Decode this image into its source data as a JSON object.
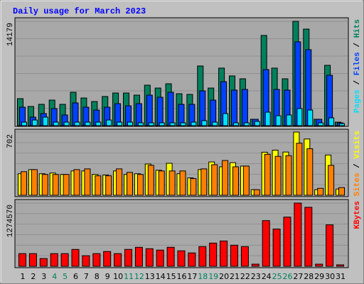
{
  "chart_data": [
    {
      "type": "bar",
      "title": "Daily usage for March 2023",
      "ylim": [
        0,
        14179
      ],
      "yticks": [
        14179
      ],
      "legend_separator": " / ",
      "series": [
        {
          "name": "Pages",
          "color": "#00e0ff",
          "values": [
            480,
            770,
            1160,
            480,
            480,
            480,
            480,
            480,
            770,
            480,
            480,
            390,
            390,
            390,
            390,
            390,
            480,
            680,
            480,
            1640,
            390,
            390,
            580,
            1830,
            1350,
            1450,
            2320,
            2120,
            390,
            1060,
            290
          ]
        },
        {
          "name": "Files",
          "color": "#0040ff",
          "values": [
            2510,
            1160,
            1640,
            2320,
            1450,
            3090,
            2510,
            2120,
            2510,
            2990,
            2700,
            2990,
            4150,
            3860,
            4540,
            2900,
            2900,
            4730,
            3470,
            5980,
            4830,
            4920,
            870,
            7620,
            4920,
            4830,
            11390,
            10330,
            870,
            6850,
            390
          ]
        },
        {
          "name": "Hits",
          "color": "#00805c",
          "values": [
            3670,
            2610,
            2900,
            3470,
            2900,
            4540,
            3760,
            3280,
            3960,
            4440,
            4440,
            4150,
            5500,
            5110,
            5690,
            4340,
            4250,
            8110,
            5110,
            7820,
            6760,
            6370,
            870,
            12260,
            7820,
            6370,
            14179,
            13120,
            870,
            8200,
            480
          ]
        }
      ]
    },
    {
      "type": "bar",
      "ylim": [
        0,
        702
      ],
      "yticks": [
        702
      ],
      "legend_separator": " / ",
      "series": [
        {
          "name": "Sites",
          "color": "#ff8000",
          "values": [
            262,
            285,
            231,
            231,
            231,
            285,
            293,
            216,
            216,
            293,
            254,
            231,
            332,
            270,
            270,
            270,
            185,
            293,
            339,
            386,
            316,
            324,
            62,
            455,
            432,
            440,
            578,
            517,
            77,
            332,
            85
          ]
        },
        {
          "name": "Visits",
          "color": "#ffff00",
          "values": [
            239,
            285,
            239,
            247,
            231,
            270,
            270,
            231,
            224,
            270,
            231,
            239,
            347,
            278,
            355,
            239,
            193,
            285,
            370,
            316,
            362,
            324,
            62,
            478,
            501,
            480,
            702,
            625,
            62,
            447,
            69
          ]
        }
      ]
    },
    {
      "type": "bar",
      "ylim": [
        0,
        1274570
      ],
      "yticks": [
        1274570
      ],
      "categories": [
        "1",
        "2",
        "3",
        "4",
        "5",
        "6",
        "7",
        "8",
        "9",
        "10",
        "11",
        "12",
        "13",
        "14",
        "15",
        "16",
        "17",
        "18",
        "19",
        "20",
        "21",
        "22",
        "23",
        "24",
        "25",
        "26",
        "27",
        "28",
        "29",
        "30",
        "31"
      ],
      "weekend_days": [
        4,
        5,
        11,
        12,
        18,
        19,
        25,
        26
      ],
      "weekend_color": "#00805c",
      "series": [
        {
          "name": "KBytes",
          "color": "#ff0000",
          "values": [
            254900,
            254900,
            155800,
            254900,
            254900,
            339900,
            212400,
            254900,
            297400,
            254900,
            339900,
            382400,
            354100,
            325700,
            382400,
            311600,
            269100,
            396500,
            467300,
            509800,
            424900,
            396500,
            42500,
            920500,
            750600,
            991300,
            1274570,
            1189600,
            42500,
            835600,
            28300
          ]
        }
      ]
    }
  ]
}
